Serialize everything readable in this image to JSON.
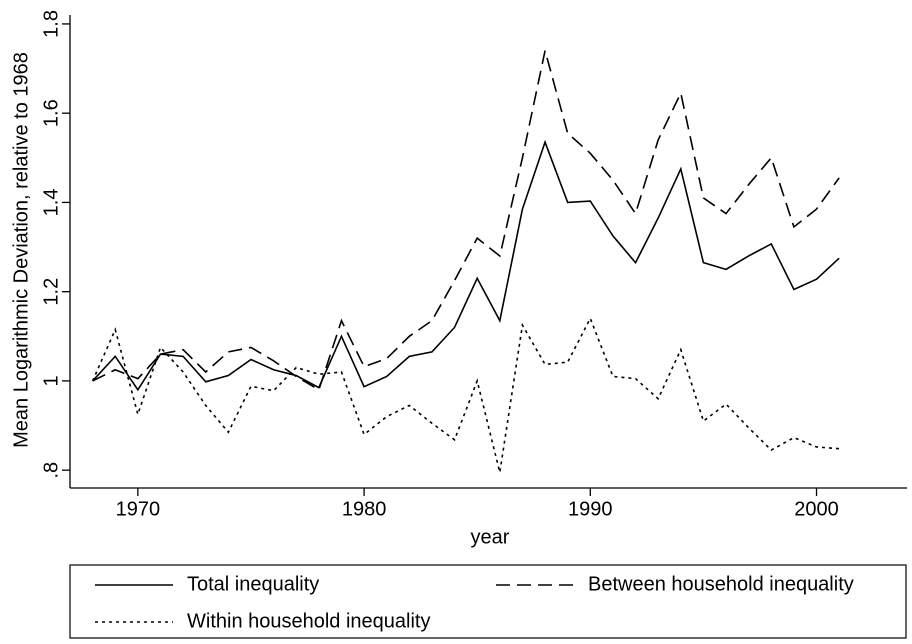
{
  "chart_data": {
    "type": "line",
    "x_label": "year",
    "y_label": "Mean Logarithmic Deviation, relative to 1968",
    "x": [
      1968,
      1969,
      1970,
      1971,
      1972,
      1973,
      1974,
      1975,
      1976,
      1977,
      1978,
      1979,
      1980,
      1981,
      1982,
      1983,
      1984,
      1985,
      1986,
      1987,
      1988,
      1989,
      1990,
      1991,
      1992,
      1993,
      1994,
      1995,
      1996,
      1997,
      1998,
      1999,
      2000,
      2001
    ],
    "series": [
      {
        "name": "Total inequality",
        "color": "#000000",
        "dash": "solid",
        "values": [
          1.0,
          1.055,
          0.98,
          1.06,
          1.055,
          0.998,
          1.012,
          1.048,
          1.025,
          1.012,
          0.985,
          1.1,
          0.987,
          1.01,
          1.055,
          1.065,
          1.12,
          1.23,
          1.135,
          1.385,
          1.535,
          1.4,
          1.403,
          1.325,
          1.265,
          1.365,
          1.475,
          1.265,
          1.25,
          1.28,
          1.307,
          1.205,
          1.228,
          1.275
        ]
      },
      {
        "name": "Between household inequality",
        "color": "#000000",
        "dash": "dash",
        "values": [
          1.0,
          1.025,
          1.005,
          1.06,
          1.07,
          1.02,
          1.065,
          1.075,
          1.045,
          1.01,
          0.98,
          1.135,
          1.032,
          1.05,
          1.1,
          1.135,
          1.225,
          1.32,
          1.28,
          1.5,
          1.74,
          1.555,
          1.51,
          1.45,
          1.375,
          1.54,
          1.645,
          1.41,
          1.375,
          1.44,
          1.5,
          1.345,
          1.385,
          1.455
        ]
      },
      {
        "name": "Within household inequality",
        "color": "#000000",
        "dash": "dot",
        "values": [
          1.0,
          1.115,
          0.925,
          1.075,
          1.02,
          0.945,
          0.885,
          0.988,
          0.978,
          1.03,
          1.015,
          1.02,
          0.88,
          0.92,
          0.945,
          0.905,
          0.868,
          1.0,
          0.795,
          1.125,
          1.037,
          1.042,
          1.14,
          1.01,
          1.005,
          0.96,
          1.07,
          0.91,
          0.948,
          0.895,
          0.845,
          0.873,
          0.852,
          0.848
        ]
      }
    ],
    "xlim": [
      1967,
      2004
    ],
    "xticks": [
      1970,
      1980,
      1990,
      2000
    ],
    "ylim": [
      0.76,
      1.82
    ],
    "yticks": [
      {
        "value": 0.8,
        "label": ".8"
      },
      1,
      1.2,
      1.4,
      1.6,
      1.8
    ],
    "grid": false,
    "legend": "bottom"
  }
}
